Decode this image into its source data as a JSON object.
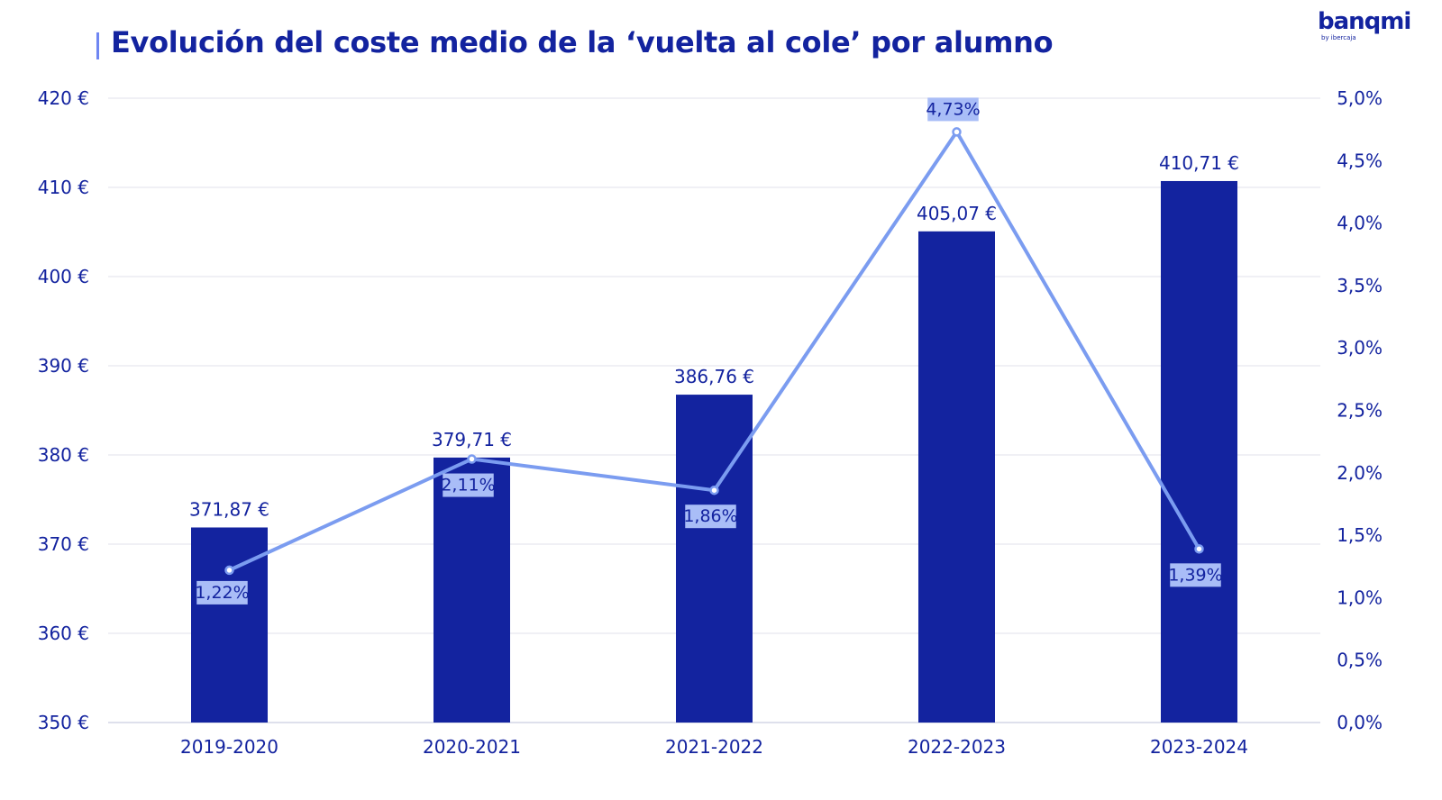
{
  "header": {
    "title": "Evolución del coste medio de la ‘vuelta al cole’ por alumno",
    "logo": "banqmi",
    "logo_sub": "by ibercaja",
    "accent_color": "#6f86f2"
  },
  "chart_data": {
    "type": "bar",
    "title": "Evolución del coste medio de la ‘vuelta al cole’ por alumno",
    "categories": [
      "2019-2020",
      "2020-2021",
      "2021-2022",
      "2022-2023",
      "2023-2024"
    ],
    "series": [
      {
        "type": "bar",
        "axis": "left",
        "color": "#13239f",
        "values": [
          371.87,
          379.71,
          386.76,
          405.07,
          410.71
        ],
        "labels": [
          "371,87 €",
          "379,71 €",
          "386,76 €",
          "405,07 €",
          "410,71 €"
        ]
      },
      {
        "type": "line",
        "axis": "right",
        "color": "#7b9cf0",
        "values": [
          1.22,
          2.11,
          1.86,
          4.73,
          1.39
        ],
        "labels": [
          "1,22%",
          "2,11%",
          "1,86%",
          "4,73%",
          "1,39%"
        ]
      }
    ],
    "y_left": {
      "min": 350,
      "max": 420,
      "ticks": [
        350,
        360,
        370,
        380,
        390,
        400,
        410,
        420
      ],
      "tick_labels": [
        "350 €",
        "360 €",
        "370 €",
        "380 €",
        "390 €",
        "400 €",
        "410 €",
        "420 €"
      ]
    },
    "y_right": {
      "min": 0,
      "max": 5,
      "ticks": [
        0,
        0.5,
        1,
        1.5,
        2,
        2.5,
        3,
        3.5,
        4,
        4.5,
        5
      ],
      "tick_labels": [
        "0,0%",
        "0,5%",
        "1,0%",
        "1,5%",
        "2,0%",
        "2,5%",
        "3,0%",
        "3,5%",
        "4,0%",
        "4,5%",
        "5,0%"
      ]
    },
    "grid": true,
    "legend": "none"
  }
}
